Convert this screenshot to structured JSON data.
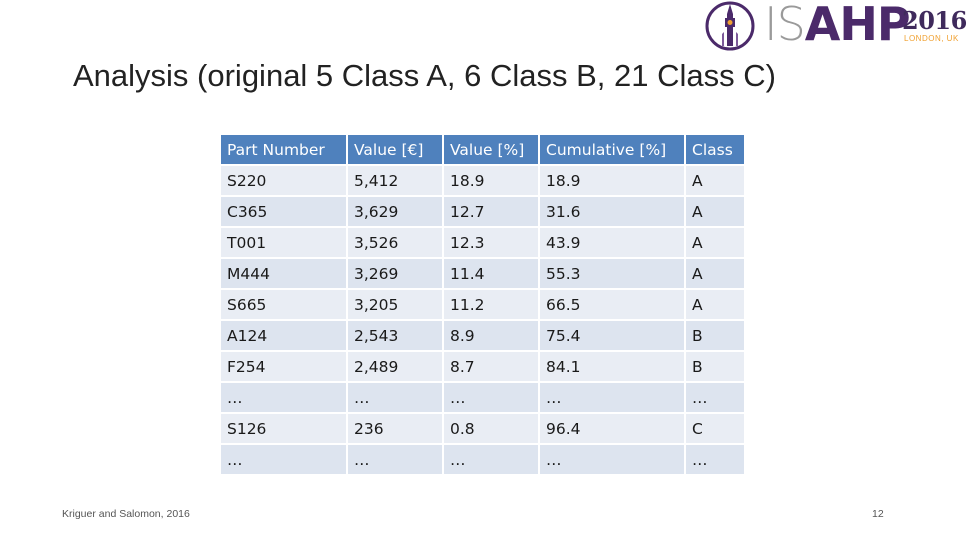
{
  "logo": {
    "is_text": "IS",
    "ahp_text": "AHP",
    "year": "2016",
    "city": "LONDON, UK"
  },
  "title": "Analysis (original 5 Class A, 6 Class B, 21 Class C)",
  "table": {
    "headers": [
      "Part Number",
      "Value [€]",
      "Value [%]",
      "Cumulative [%]",
      "Class"
    ],
    "rows": [
      [
        "S220",
        "5,412",
        "18.9",
        "18.9",
        "A"
      ],
      [
        "C365",
        "3,629",
        "12.7",
        "31.6",
        "A"
      ],
      [
        "T001",
        "3,526",
        "12.3",
        "43.9",
        "A"
      ],
      [
        "M444",
        "3,269",
        "11.4",
        "55.3",
        "A"
      ],
      [
        "S665",
        "3,205",
        "11.2",
        "66.5",
        "A"
      ],
      [
        "A124",
        "2,543",
        "8.9",
        "75.4",
        "B"
      ],
      [
        "F254",
        "2,489",
        "8.7",
        "84.1",
        "B"
      ],
      [
        "…",
        "…",
        "…",
        "…",
        "…"
      ],
      [
        "S126",
        "236",
        "0.8",
        "96.4",
        "C"
      ],
      [
        "…",
        "…",
        "…",
        "…",
        "…"
      ]
    ]
  },
  "footer": {
    "citation": "Kriguer and Salomon, 2016",
    "page_number": "12"
  },
  "colors": {
    "header_bg": "#4f81bd",
    "row_bg_light": "#e9edf4",
    "row_bg_dark": "#dde4ef",
    "logo_purple": "#4b2a6a"
  }
}
